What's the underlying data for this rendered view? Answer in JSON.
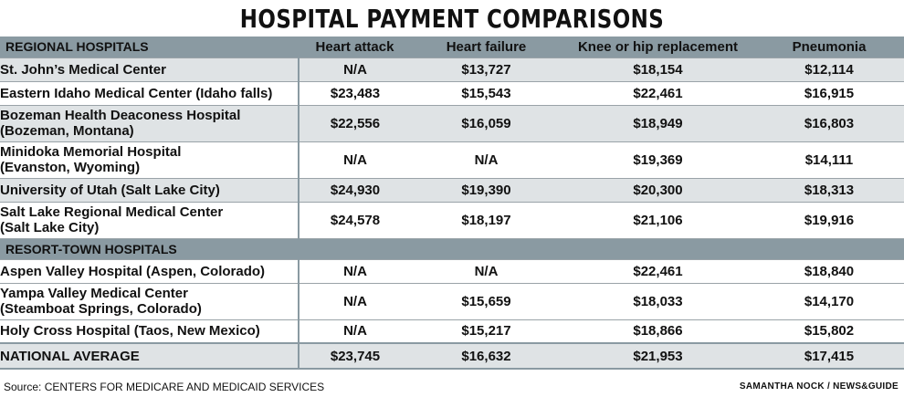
{
  "title": "HOSPITAL PAYMENT COMPARISONS",
  "chart_data": {
    "type": "table",
    "columns": [
      "REGIONAL HOSPITALS",
      "Heart attack",
      "Heart failure",
      "Knee or hip replacement",
      "Pneumonia"
    ],
    "regional_rows": [
      {
        "name": [
          "St. John’s Medical Center"
        ],
        "values": [
          "N/A",
          "$13,727",
          "$18,154",
          "$12,114"
        ]
      },
      {
        "name": [
          "Eastern Idaho Medical Center (Idaho falls)"
        ],
        "values": [
          "$23,483",
          "$15,543",
          "$22,461",
          "$16,915"
        ]
      },
      {
        "name": [
          "Bozeman Health Deaconess Hospital",
          "(Bozeman, Montana)"
        ],
        "values": [
          "$22,556",
          "$16,059",
          "$18,949",
          "$16,803"
        ]
      },
      {
        "name": [
          "Minidoka Memorial Hospital",
          "(Evanston, Wyoming)"
        ],
        "values": [
          "N/A",
          "N/A",
          "$19,369",
          "$14,111"
        ]
      },
      {
        "name": [
          "University of Utah (Salt Lake City)"
        ],
        "values": [
          "$24,930",
          "$19,390",
          "$20,300",
          "$18,313"
        ]
      },
      {
        "name": [
          "Salt Lake Regional Medical Center",
          "(Salt Lake City)"
        ],
        "values": [
          "$24,578",
          "$18,197",
          "$21,106",
          "$19,916"
        ]
      }
    ],
    "resort_section_label": "RESORT-TOWN HOSPITALS",
    "resort_rows": [
      {
        "name": [
          "Aspen Valley Hospital (Aspen, Colorado)"
        ],
        "values": [
          "N/A",
          "N/A",
          "$22,461",
          "$18,840"
        ]
      },
      {
        "name": [
          "Yampa Valley Medical Center",
          "(Steamboat Springs, Colorado)"
        ],
        "values": [
          "N/A",
          "$15,659",
          "$18,033",
          "$14,170"
        ]
      },
      {
        "name": [
          "Holy Cross Hospital (Taos, New Mexico)"
        ],
        "values": [
          "N/A",
          "$15,217",
          "$18,866",
          "$15,802"
        ]
      }
    ],
    "total_row": {
      "name": [
        "NATIONAL AVERAGE"
      ],
      "values": [
        "$23,745",
        "$16,632",
        "$21,953",
        "$17,415"
      ]
    }
  },
  "footer": {
    "source": "Source: CENTERS FOR MEDICARE AND MEDICAID SERVICES",
    "credit": "SAMANTHA NOCK / NEWS&GUIDE"
  },
  "colors": {
    "header_band": "#8a9aa2",
    "row_shade": "#dfe3e5"
  }
}
